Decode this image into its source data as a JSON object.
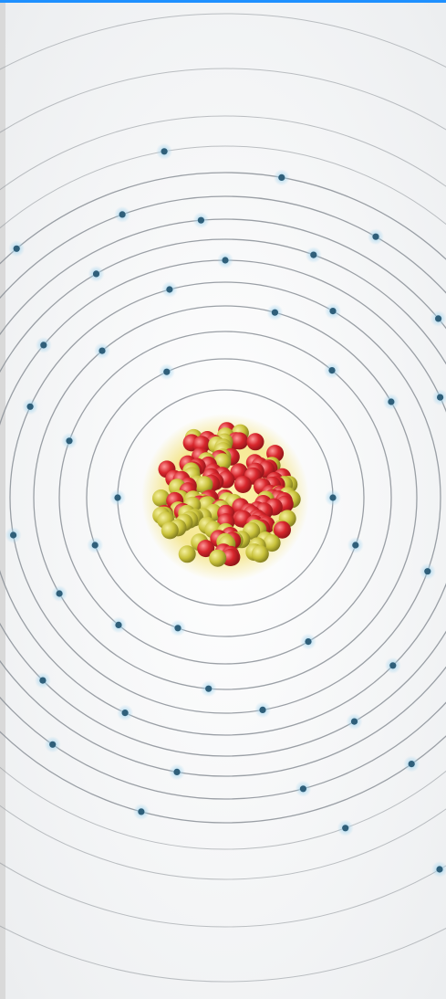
{
  "image": {
    "subject": "atom-model",
    "colors": {
      "top_bar": "#1e90ff",
      "left_strip": "#d9d9d9",
      "background": "#f4f5f6",
      "orbit": "#8a8f96",
      "electron": "#2f5f7a",
      "electron_glow": "#9fd3ee",
      "proton": "#d8262c",
      "neutron": "#c9c23a",
      "nucleus_glow": "#f3e27a"
    }
  }
}
